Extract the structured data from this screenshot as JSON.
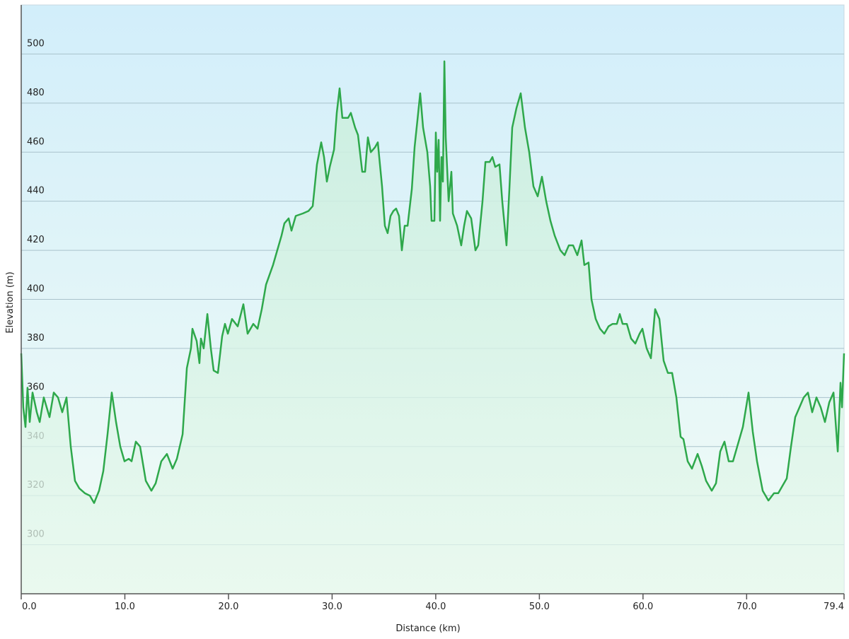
{
  "chart_data": {
    "type": "line",
    "xlabel": "Distance  (km)",
    "ylabel": "Elevation (m)",
    "color": "#2ea84b",
    "fill": "#c8efd2",
    "xlim": [
      0,
      79.4
    ],
    "ylim": [
      280,
      520
    ],
    "xticks": [
      {
        "value": 0,
        "label": "0.0"
      },
      {
        "value": 10,
        "label": "10.0"
      },
      {
        "value": 20,
        "label": "20.0"
      },
      {
        "value": 30,
        "label": "30.0"
      },
      {
        "value": 40,
        "label": "40.0"
      },
      {
        "value": 50,
        "label": "50.0"
      },
      {
        "value": 60,
        "label": "60.0"
      },
      {
        "value": 70,
        "label": "70.0"
      },
      79.4
    ],
    "yticks": [
      300,
      320,
      340,
      360,
      380,
      400,
      420,
      440,
      460,
      480,
      500
    ],
    "grid": true,
    "x": [
      0,
      0.2,
      0.41,
      0.61,
      0.82,
      1.09,
      1.5,
      1.78,
      2.18,
      2.73,
      3.14,
      3.55,
      3.96,
      4.37,
      4.78,
      5.19,
      5.6,
      6.14,
      6.62,
      7.03,
      7.51,
      7.92,
      8.33,
      8.74,
      9.15,
      9.56,
      9.97,
      10.38,
      10.65,
      11.06,
      11.47,
      12.02,
      12.56,
      12.97,
      13.52,
      14.06,
      14.61,
      15.02,
      15.57,
      15.98,
      16.38,
      16.52,
      16.93,
      17.2,
      17.34,
      17.61,
      17.96,
      18.3,
      18.57,
      18.98,
      19.39,
      19.66,
      19.94,
      20.34,
      20.89,
      21.44,
      21.85,
      22.39,
      22.8,
      23.21,
      23.62,
      24.3,
      24.71,
      25.12,
      25.4,
      25.81,
      26.08,
      26.49,
      27.17,
      27.72,
      28.13,
      28.54,
      28.95,
      29.22,
      29.49,
      29.77,
      30.18,
      30.45,
      30.72,
      30.99,
      31.54,
      31.81,
      32.22,
      32.5,
      32.91,
      33.18,
      33.45,
      33.73,
      34.14,
      34.41,
      34.82,
      35.09,
      35.36,
      35.64,
      35.91,
      36.18,
      36.46,
      36.73,
      37.0,
      37.28,
      37.69,
      37.96,
      38.23,
      38.5,
      38.78,
      39.19,
      39.46,
      39.6,
      39.87,
      40.01,
      40.14,
      40.28,
      40.42,
      40.55,
      40.69,
      40.83,
      40.96,
      41.24,
      41.51,
      41.65,
      42.06,
      42.46,
      42.74,
      43.01,
      43.42,
      43.83,
      44.1,
      44.51,
      44.79,
      45.2,
      45.47,
      45.74,
      46.15,
      46.42,
      46.83,
      47.11,
      47.38,
      47.79,
      48.2,
      48.61,
      49.02,
      49.43,
      49.84,
      50.25,
      50.66,
      51.07,
      51.48,
      52.02,
      52.43,
      52.84,
      53.25,
      53.66,
      54.07,
      54.34,
      54.75,
      55.03,
      55.44,
      55.85,
      56.26,
      56.67,
      57.07,
      57.48,
      57.76,
      58.03,
      58.44,
      58.85,
      59.26,
      59.67,
      59.94,
      60.35,
      60.76,
      61.17,
      61.58,
      61.99,
      62.4,
      62.81,
      63.22,
      63.63,
      63.9,
      64.31,
      64.72,
      65.27,
      65.68,
      66.09,
      66.63,
      67.04,
      67.45,
      67.86,
      68.27,
      68.68,
      69.09,
      69.64,
      70.18,
      70.59,
      71.0,
      71.55,
      72.1,
      72.64,
      73.05,
      73.46,
      73.87,
      74.28,
      74.69,
      75.1,
      75.51,
      75.92,
      76.33,
      76.74,
      77.15,
      77.56,
      77.97,
      78.38,
      78.79,
      79.06,
      79.2,
      79.4
    ],
    "values": [
      378,
      356,
      348,
      364,
      350,
      362,
      354,
      350,
      360,
      352,
      362,
      360,
      354,
      360,
      340,
      326,
      323,
      321,
      320,
      317,
      322,
      330,
      345,
      362,
      350,
      340,
      334,
      335,
      334,
      342,
      340,
      326,
      322,
      325,
      334,
      337,
      331,
      335,
      345,
      372,
      380,
      388,
      383,
      374,
      384,
      380,
      394,
      380,
      371,
      370,
      385,
      390,
      386,
      392,
      389,
      398,
      386,
      390,
      388,
      396,
      406,
      414,
      420,
      426,
      431,
      433,
      428,
      434,
      435,
      436,
      438,
      455,
      464,
      458,
      448,
      454,
      461,
      476,
      486,
      474,
      474,
      476,
      470,
      467,
      452,
      452,
      466,
      460,
      462,
      464,
      446,
      430,
      427,
      434,
      436,
      437,
      434,
      420,
      430,
      430,
      445,
      462,
      473,
      484,
      470,
      460,
      446,
      432,
      432,
      468,
      452,
      465,
      432,
      458,
      448,
      497,
      466,
      440,
      452,
      435,
      430,
      422,
      430,
      436,
      433,
      420,
      422,
      440,
      456,
      456,
      458,
      454,
      455,
      440,
      422,
      445,
      470,
      478,
      484,
      470,
      460,
      446,
      442,
      450,
      440,
      432,
      426,
      420,
      418,
      422,
      422,
      418,
      424,
      414,
      415,
      400,
      392,
      388,
      386,
      389,
      390,
      390,
      394,
      390,
      390,
      384,
      382,
      386,
      388,
      380,
      376,
      396,
      392,
      375,
      370,
      370,
      360,
      344,
      343,
      334,
      331,
      337,
      332,
      326,
      322,
      325,
      338,
      342,
      334,
      334,
      340,
      348,
      362,
      346,
      334,
      322,
      318,
      321,
      321,
      324,
      327,
      340,
      352,
      356,
      360,
      362,
      354,
      360,
      356,
      350,
      358,
      362,
      338,
      366,
      356,
      378
    ]
  }
}
